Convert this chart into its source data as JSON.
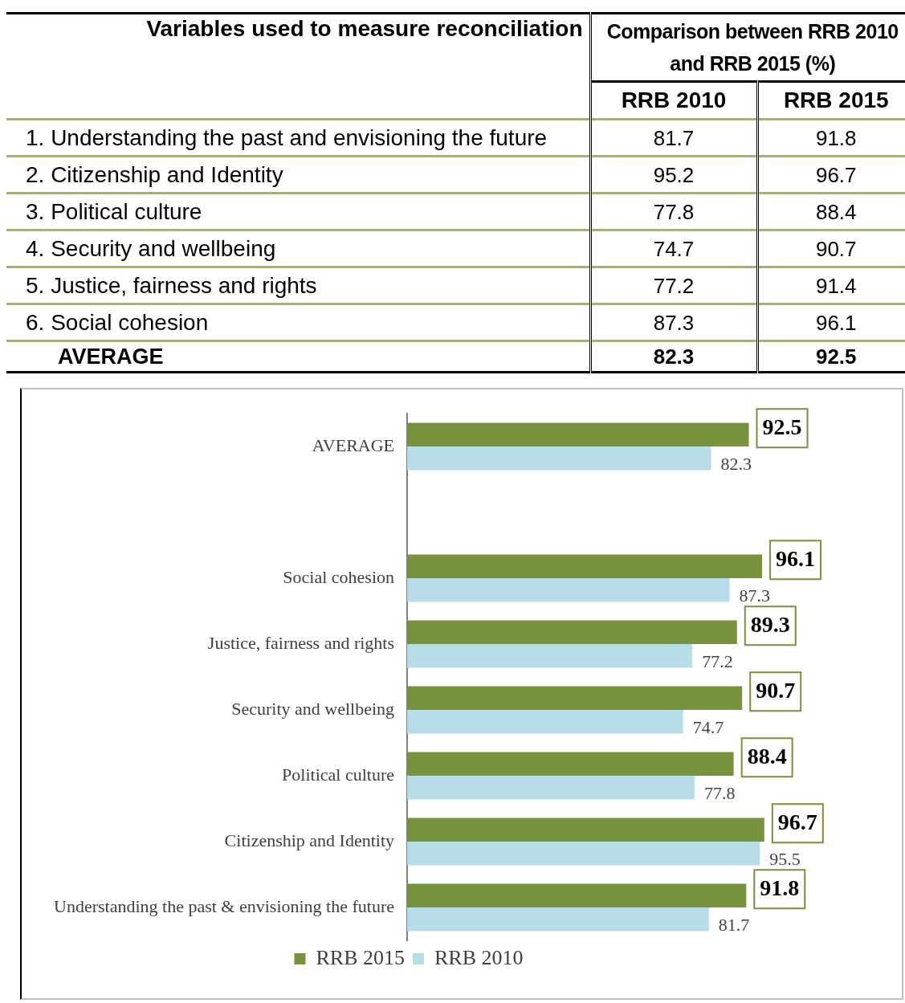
{
  "chart_data": [
    {
      "type": "other",
      "title": "Variables used to measure reconciliation",
      "subtitle": "Comparison between RRB 2010 and RRB 2015 (%)",
      "categories": [
        "1. Understanding the past and envisioning the future",
        "2. Citizenship and Identity",
        "3. Political culture",
        "4. Security and wellbeing",
        "5. Justice, fairness and rights",
        "6. Social cohesion",
        "AVERAGE"
      ],
      "series": [
        {
          "name": "RRB 2010",
          "values": [
            81.7,
            95.2,
            77.8,
            74.7,
            77.2,
            87.3,
            82.3
          ]
        },
        {
          "name": "RRB 2015",
          "values": [
            91.8,
            96.7,
            88.4,
            90.7,
            91.4,
            96.1,
            92.5
          ]
        }
      ],
      "data_labels": true
    },
    {
      "type": "bar",
      "orientation": "horizontal",
      "categories": [
        "AVERAGE",
        null,
        "Social cohesion",
        "Justice, fairness and rights",
        "Security and wellbeing",
        "Political culture",
        "Citizenship and Identity",
        "Understanding the past & envisioning the future"
      ],
      "series": [
        {
          "name": "RRB 2015",
          "color": "#77933c",
          "values": [
            92.5,
            null,
            96.1,
            89.3,
            90.7,
            88.4,
            96.7,
            91.8
          ]
        },
        {
          "name": "RRB 2010",
          "color": "#b7dde8",
          "values": [
            82.3,
            null,
            87.3,
            77.2,
            74.7,
            77.8,
            95.5,
            81.7
          ]
        }
      ],
      "tick_labels": "y",
      "grid": false,
      "legend": "bottom",
      "data_labels": true
    }
  ]
}
